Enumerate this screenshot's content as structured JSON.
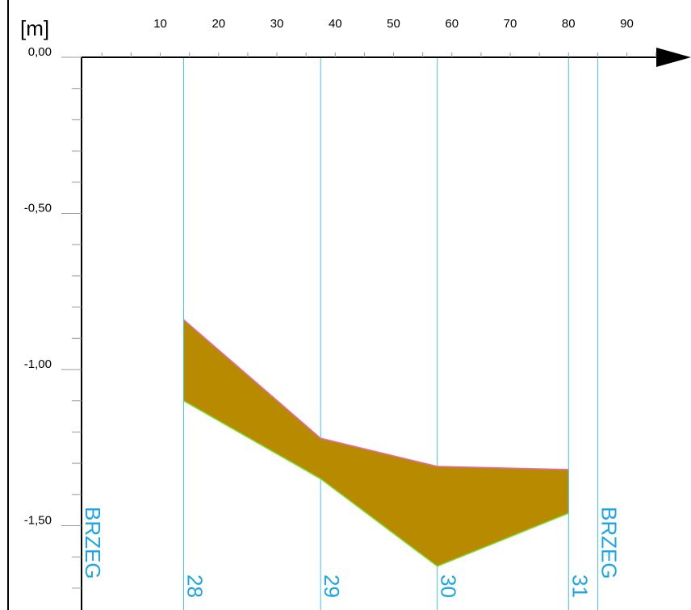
{
  "chart_data": {
    "type": "area",
    "y_unit_label": "[m]",
    "x_ticks": [
      10,
      20,
      30,
      40,
      50,
      60,
      70,
      80,
      90
    ],
    "y_ticks": [
      {
        "value": 0.0,
        "label": "0,00"
      },
      {
        "value": -0.5,
        "label": "-0,50"
      },
      {
        "value": -1.0,
        "label": "-1,00"
      },
      {
        "value": -1.5,
        "label": "-1,50"
      }
    ],
    "xlim": [
      -3.5,
      101
    ],
    "ylim": [
      -1.77,
      0
    ],
    "bank_lines": [
      {
        "x": -3.5,
        "label": "BRZEG"
      },
      {
        "x": 85,
        "label": "BRZEG"
      }
    ],
    "profile_lines": [
      {
        "x": 14,
        "label": "28"
      },
      {
        "x": 37.5,
        "label": "29"
      },
      {
        "x": 57.5,
        "label": "30"
      },
      {
        "x": 80,
        "label": "31"
      }
    ],
    "layer": {
      "top": [
        [
          14,
          -0.84
        ],
        [
          37.5,
          -1.22
        ],
        [
          57.5,
          -1.31
        ],
        [
          80,
          -1.32
        ]
      ],
      "bottom": [
        [
          14,
          -1.1
        ],
        [
          37.5,
          -1.35
        ],
        [
          57.5,
          -1.63
        ],
        [
          80,
          -1.46
        ]
      ]
    },
    "colors": {
      "fill": "#b88a00",
      "top_line": "#e86ab4",
      "bottom_line": "#7ae030",
      "profile_lines": "#4bbde0",
      "labels": "#1aa6e6",
      "axis": "#000000"
    }
  }
}
